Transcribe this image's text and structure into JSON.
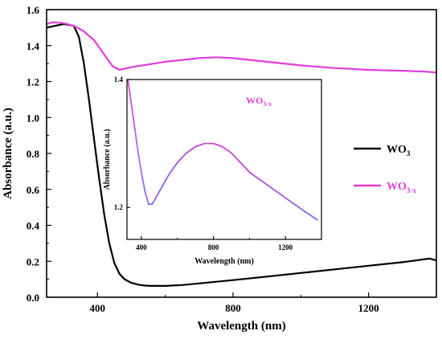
{
  "chart_data": [
    {
      "type": "line",
      "xlabel": "Wavelength (nm)",
      "ylabel": "Absorbance (a.u.)",
      "xlim": [
        250,
        1400
      ],
      "ylim": [
        0.0,
        1.6
      ],
      "xticks": [
        400,
        800,
        1200
      ],
      "xtick_labels": [
        "400",
        "800",
        "1200"
      ],
      "yticks": [
        0.0,
        0.2,
        0.4,
        0.6,
        0.8,
        1.0,
        1.2,
        1.4,
        1.6
      ],
      "ytick_labels": [
        "0.0",
        "0.2",
        "0.4",
        "0.6",
        "0.8",
        "1.0",
        "1.2",
        "1.4",
        "1.6"
      ],
      "legend_position": "center-right",
      "legend": [
        {
          "base": "WO",
          "sub": "3",
          "color": "#000000"
        },
        {
          "base": "WO",
          "sub": "3-x",
          "color": "#e23ddc"
        }
      ],
      "series": [
        {
          "color": "#000000",
          "x": [
            250,
            300,
            330,
            345,
            360,
            375,
            390,
            405,
            420,
            435,
            450,
            465,
            480,
            500,
            520,
            540,
            560,
            600,
            650,
            700,
            800,
            900,
            1000,
            1100,
            1200,
            1300,
            1380,
            1400
          ],
          "y": [
            1.5,
            1.52,
            1.51,
            1.45,
            1.3,
            1.1,
            0.88,
            0.66,
            0.46,
            0.3,
            0.19,
            0.13,
            0.1,
            0.08,
            0.07,
            0.065,
            0.063,
            0.063,
            0.068,
            0.077,
            0.095,
            0.115,
            0.135,
            0.155,
            0.175,
            0.195,
            0.215,
            0.205
          ]
        },
        {
          "color": "#e23ddc",
          "x": [
            250,
            270,
            300,
            330,
            360,
            390,
            420,
            445,
            465,
            500,
            600,
            700,
            750,
            800,
            900,
            1000,
            1100,
            1200,
            1300,
            1370,
            1400
          ],
          "y": [
            1.52,
            1.53,
            1.525,
            1.51,
            1.48,
            1.43,
            1.35,
            1.285,
            1.265,
            1.28,
            1.31,
            1.33,
            1.335,
            1.33,
            1.31,
            1.29,
            1.275,
            1.265,
            1.26,
            1.255,
            1.25
          ]
        }
      ]
    },
    {
      "type": "line",
      "xlabel": "Wavelength (nm)",
      "ylabel": "Absorbance (a.u.)",
      "xlim": [
        320,
        1400
      ],
      "ylim": [
        1.15,
        1.4
      ],
      "xticks": [
        400,
        800,
        1200
      ],
      "xtick_labels": [
        "400",
        "800",
        "1200"
      ],
      "yticks": [
        1.2,
        1.4
      ],
      "ytick_labels": [
        "1.2",
        "1.4"
      ],
      "label": {
        "base": "WO",
        "sub": "3-x",
        "color": "#e23ddc"
      },
      "series": [
        {
          "color": "#e23ddc",
          "x": [
            325,
            340,
            360,
            380,
            400,
            420,
            440,
            460,
            500,
            550,
            600,
            650,
            700,
            750,
            800,
            850,
            900,
            950,
            1000,
            1100,
            1200,
            1300,
            1380
          ],
          "y": [
            1.4,
            1.37,
            1.33,
            1.29,
            1.255,
            1.225,
            1.205,
            1.205,
            1.225,
            1.25,
            1.27,
            1.285,
            1.295,
            1.3,
            1.3,
            1.295,
            1.285,
            1.27,
            1.255,
            1.235,
            1.215,
            1.195,
            1.18
          ]
        }
      ]
    }
  ]
}
